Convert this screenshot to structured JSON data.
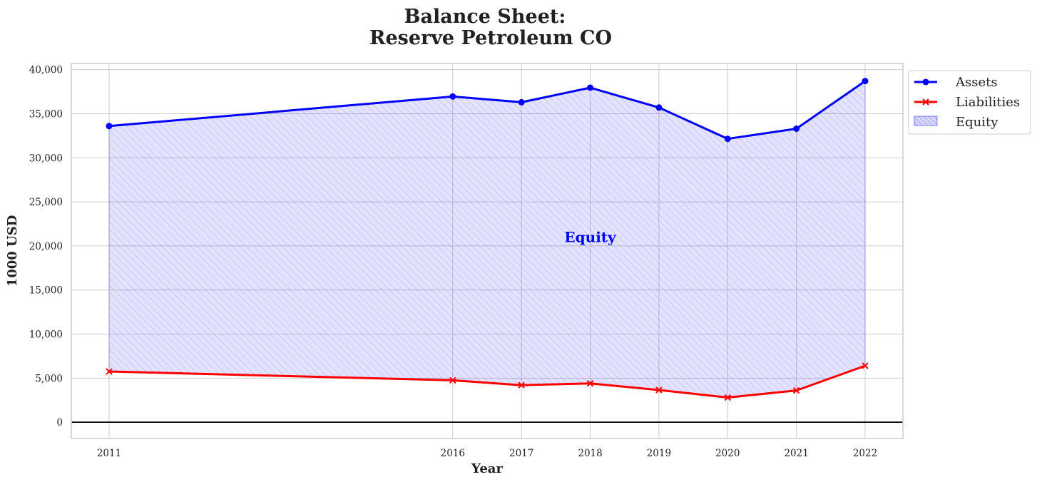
{
  "chart_data": {
    "type": "line",
    "title": [
      "Balance Sheet:",
      "Reserve Petroleum CO"
    ],
    "xlabel": "Year",
    "ylabel": "1000 USD",
    "x": [
      2011,
      2016,
      2017,
      2018,
      2019,
      2020,
      2021,
      2022
    ],
    "xticks": [
      "2011",
      "2016",
      "2017",
      "2018",
      "2019",
      "2020",
      "2021",
      "2022"
    ],
    "xlim": [
      2010.45,
      2022.55
    ],
    "ylim": [
      -1850,
      40700
    ],
    "yticks": [
      0,
      5000,
      10000,
      15000,
      20000,
      25000,
      30000,
      35000,
      40000
    ],
    "ytick_labels": [
      "0",
      "5,000",
      "10,000",
      "15,000",
      "20,000",
      "25,000",
      "30,000",
      "35,000",
      "40,000"
    ],
    "grid": true,
    "series": [
      {
        "name": "Assets",
        "color": "#0000ff",
        "marker": "circle",
        "values": [
          33600,
          36950,
          36300,
          37950,
          35700,
          32150,
          33300,
          38700
        ]
      },
      {
        "name": "Liabilities",
        "color": "#ff0000",
        "marker": "x",
        "values": [
          5750,
          4750,
          4200,
          4400,
          3650,
          2800,
          3600,
          6400
        ]
      }
    ],
    "fill": {
      "name": "Equity",
      "between": [
        "Assets",
        "Liabilities"
      ],
      "color": "#0000ff",
      "hatch": "////"
    },
    "annotation": {
      "text": "Equity",
      "x": 2018,
      "y": 21000,
      "color": "#0000ff"
    },
    "hline": {
      "y": 0,
      "color": "#000000"
    },
    "legend": {
      "position": "upper-right-outside",
      "entries": [
        "Assets",
        "Liabilities",
        "Equity"
      ]
    }
  }
}
